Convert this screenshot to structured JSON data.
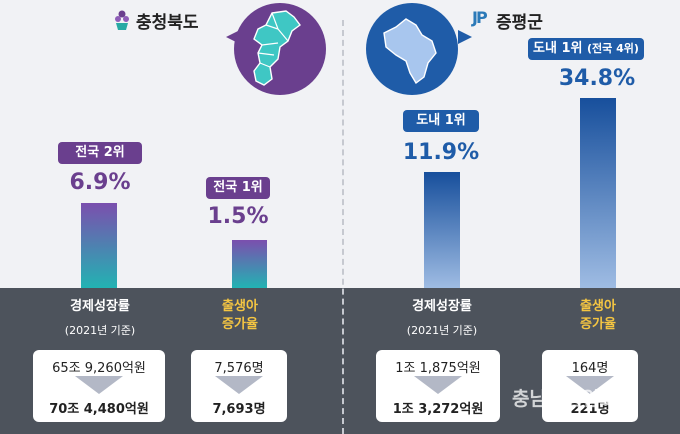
{
  "left": {
    "region": "충청북도",
    "accent": "#6a3f8e",
    "bar_top_color": "#7b4fae",
    "bar_bottom_color": "#22b3b3"
  },
  "right": {
    "region": "증평군",
    "logo_mark": "JP",
    "accent": "#1f5ca8",
    "bar_top_color": "#174f9c",
    "bar_bottom_color": "#9fbce3"
  },
  "chart_data": [
    {
      "type": "bar",
      "region": "충청북도",
      "categories": [
        "경제성장률",
        "출생아 증가율"
      ],
      "values": [
        6.9,
        1.5
      ],
      "value_labels": [
        "6.9%",
        "1.5%"
      ],
      "rank_labels": [
        "전국 2위",
        "전국 1위"
      ],
      "category_note": "(2021년 기준)",
      "comparisons": [
        {
          "from": "65조 9,260억원",
          "to": "70조 4,480억원"
        },
        {
          "from": "7,576명",
          "to": "7,693명"
        }
      ]
    },
    {
      "type": "bar",
      "region": "증평군",
      "categories": [
        "경제성장률",
        "출생아 증가율"
      ],
      "values": [
        11.9,
        34.8
      ],
      "value_labels": [
        "11.9%",
        "34.8%"
      ],
      "rank_labels": [
        "도내 1위",
        "도내 1위"
      ],
      "rank_label_extra": "(전국 4위)",
      "category_note": "(2021년 기준)",
      "comparisons": [
        {
          "from": "1조 1,875억원",
          "to": "1조 3,272억원"
        },
        {
          "from": "164명",
          "to": "221명"
        }
      ]
    }
  ],
  "category_labels": {
    "growth": "경제성장률",
    "birth_line1": "출생아",
    "birth_line2": "증가율"
  },
  "watermark": "충남도민일보"
}
